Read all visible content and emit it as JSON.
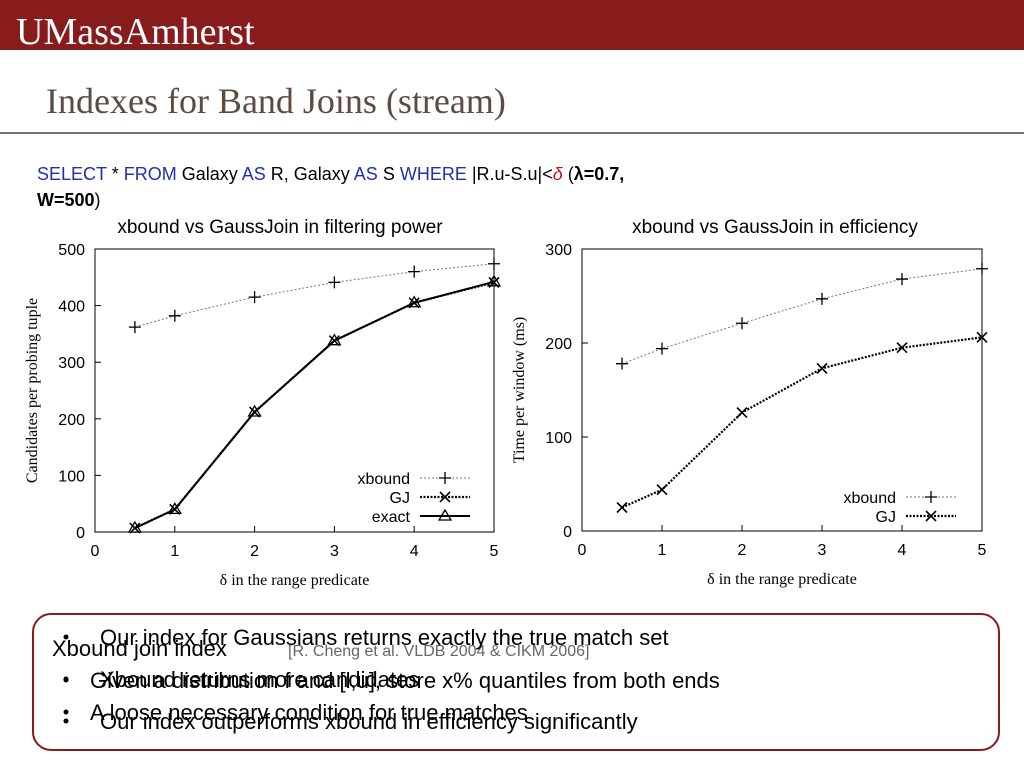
{
  "header": {
    "logo": "UMassAmherst"
  },
  "title": "Indexes for Band Joins (stream)",
  "query": [
    {
      "text": "SELECT",
      "kind": "kw"
    },
    {
      "text": " * ",
      "kind": "plain"
    },
    {
      "text": "FROM",
      "kind": "kw"
    },
    {
      "text": " Galaxy ",
      "kind": "plain"
    },
    {
      "text": "AS",
      "kind": "kw"
    },
    {
      "text": " R, Galaxy ",
      "kind": "plain"
    },
    {
      "text": "AS",
      "kind": "kw"
    },
    {
      "text": " S ",
      "kind": "plain"
    },
    {
      "text": "WHERE",
      "kind": "kw"
    },
    {
      "text": " |R.u-S.u|<",
      "kind": "plain"
    },
    {
      "text": "δ",
      "kind": "delta"
    },
    {
      "text": " (",
      "kind": "plain"
    },
    {
      "text": "λ=0.7,",
      "kind": "bold"
    }
  ],
  "query_line2": [
    {
      "text": "W=500",
      "kind": "bold"
    },
    {
      "text": ")",
      "kind": "plain"
    }
  ],
  "chart_data": [
    {
      "type": "line",
      "title": "xbound vs GaussJoin in filtering power",
      "x_label": "δ in the range predicate",
      "y_label": "Candidates per probing tuple",
      "x": [
        0.5,
        1,
        2,
        3,
        4,
        5
      ],
      "xlim": [
        0,
        5
      ],
      "xticks": [
        0,
        1,
        2,
        3,
        4,
        5
      ],
      "ylim": [
        0,
        500
      ],
      "yticks": [
        0,
        100,
        200,
        300,
        400,
        500
      ],
      "legend": "lower right",
      "series": [
        {
          "name": "xbound",
          "color": "#777777",
          "marker": "plus",
          "dash": "dotted-thin",
          "values": [
            362,
            382,
            415,
            441,
            460,
            474
          ]
        },
        {
          "name": "GJ",
          "color": "#000000",
          "marker": "cross",
          "dash": "dotted",
          "values": [
            7,
            40,
            212,
            338,
            405,
            441
          ]
        },
        {
          "name": "exact",
          "color": "#000000",
          "marker": "triangle",
          "dash": "solid",
          "values": [
            7,
            40,
            212,
            338,
            405,
            442
          ]
        }
      ]
    },
    {
      "type": "line",
      "title": "xbound vs GaussJoin in efficiency",
      "x_label": "δ in the range predicate",
      "y_label": "Time per window (ms)",
      "x": [
        0.5,
        1,
        2,
        3,
        4,
        5
      ],
      "xlim": [
        0,
        5
      ],
      "xticks": [
        0,
        1,
        2,
        3,
        4,
        5
      ],
      "ylim": [
        0,
        300
      ],
      "yticks": [
        0,
        100,
        200,
        300
      ],
      "legend": "lower right",
      "series": [
        {
          "name": "xbound",
          "color": "#777777",
          "marker": "plus",
          "dash": "dotted-thin",
          "values": [
            178,
            194,
            221,
            247,
            268,
            279
          ]
        },
        {
          "name": "GJ",
          "color": "#000000",
          "marker": "cross",
          "dash": "dotted",
          "values": [
            25,
            44,
            126,
            173,
            195,
            206
          ]
        }
      ]
    }
  ],
  "box": {
    "layer_a": {
      "heading": "Xbound join index",
      "citation": "[R. Cheng et al. VLDB 2004 & CIKM 2006]",
      "bullets": [
        "Given a distribution f and [l,u], store x% quantiles from both ends",
        "A loose necessary condition for true matches"
      ]
    },
    "layer_b": {
      "bullets": [
        "Our index for Gaussians returns exactly the true match set",
        "Xbound returns more candidates",
        "Our index outperforms xbound in efficiency significantly"
      ]
    }
  }
}
